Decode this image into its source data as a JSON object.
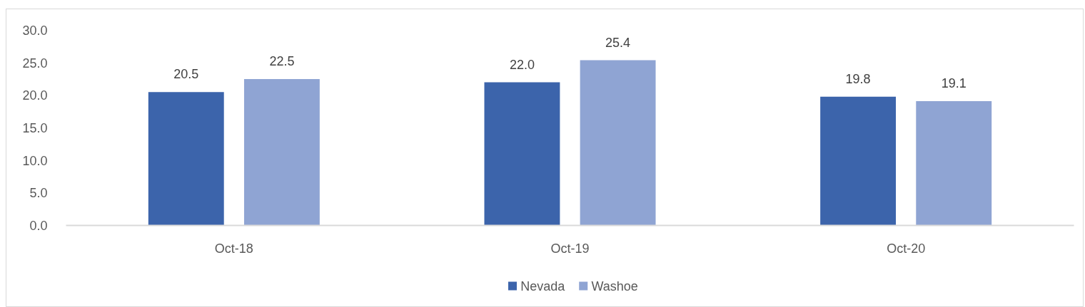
{
  "chart_data": {
    "type": "bar",
    "categories": [
      "Oct-18",
      "Oct-19",
      "Oct-20"
    ],
    "series": [
      {
        "name": "Nevada",
        "color": "#3c64ab",
        "values": [
          20.5,
          22.0,
          19.8
        ],
        "value_labels": [
          "20.5",
          "22.0",
          "19.8"
        ]
      },
      {
        "name": "Washoe",
        "color": "#8fa4d3",
        "values": [
          22.5,
          25.4,
          19.1
        ],
        "value_labels": [
          "22.5",
          "25.4",
          "19.1"
        ]
      }
    ],
    "ylim": [
      0,
      30
    ],
    "yticks": [
      {
        "value": 0,
        "label": "0.0"
      },
      {
        "value": 5,
        "label": "5.0"
      },
      {
        "value": 10,
        "label": "10.0"
      },
      {
        "value": 15,
        "label": "15.0"
      },
      {
        "value": 20,
        "label": "20.0"
      },
      {
        "value": 25,
        "label": "25.0"
      },
      {
        "value": 30,
        "label": "30.0"
      }
    ],
    "legend": "bottom"
  }
}
